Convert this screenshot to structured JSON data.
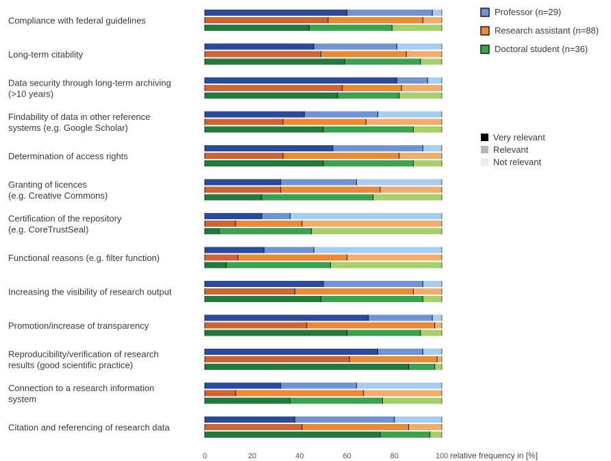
{
  "chart_data": {
    "type": "bar",
    "orientation": "horizontal",
    "stacked": true,
    "xlabel": "relative frequency in [%]",
    "xlim": [
      0,
      100
    ],
    "xticks": [
      "0",
      "20",
      "40",
      "60",
      "80",
      "100"
    ],
    "grid": false,
    "groups": [
      {
        "name": "Professor (n=29)",
        "colors": {
          "Very relevant": "#2b4a99",
          "Relevant": "#6f93d3",
          "Not relevant": "#a9cdee"
        }
      },
      {
        "name": "Research assistant (n=88)",
        "colors": {
          "Very relevant": "#cf6536",
          "Relevant": "#ec8935",
          "Not relevant": "#f3ad6b"
        }
      },
      {
        "name": "Doctoral student (n=36)",
        "colors": {
          "Very relevant": "#237a3c",
          "Relevant": "#3ba34f",
          "Not relevant": "#a7d06b"
        }
      }
    ],
    "stack_segments": [
      "Very relevant",
      "Relevant",
      "Not relevant"
    ],
    "categories": [
      "Compliance with federal guidelines",
      "Long-term citability",
      "Data security through long-term archiving (>10 years)",
      "Findability of data in other reference systems (e.g. Google Scholar)",
      "Determination of access rights",
      "Granting of licences (e.g. Creative Commons)",
      "Certification of the repository (e.g. CoreTrustSeal)",
      "Functional reasons (e.g. filter function)",
      "Increasing the visibility of research output",
      "Promotion/increase of transparency",
      "Reproducibility/verification of research results (good scientific practice)",
      "Connection to a research information system",
      "Citation and referencing of research data"
    ],
    "category_lines": [
      [
        "Compliance with federal guidelines"
      ],
      [
        "Long-term citability"
      ],
      [
        "Data security through long-term archiving",
        "(>10 years)"
      ],
      [
        "Findability of data in other reference",
        "systems (e.g. Google Scholar)"
      ],
      [
        "Determination of access rights"
      ],
      [
        "Granting of licences",
        "(e.g. Creative Commons)"
      ],
      [
        "Certification of the repository",
        "(e.g. CoreTrustSeal)"
      ],
      [
        "Functional reasons (e.g. filter function)"
      ],
      [
        "Increasing the visibility of research output"
      ],
      [
        "Promotion/increase of transparency"
      ],
      [
        "Reproducibility/verification of research",
        "results (good scientific practice)"
      ],
      [
        "Connection to a research information",
        "system"
      ],
      [
        "Citation and referencing of research data"
      ]
    ],
    "series": [
      {
        "name": "Professor (n=29)",
        "values": [
          [
            60,
            36,
            4
          ],
          [
            46,
            35,
            19
          ],
          [
            81,
            13,
            6
          ],
          [
            42,
            31,
            27
          ],
          [
            54,
            38,
            8
          ],
          [
            32,
            32,
            36
          ],
          [
            24,
            12,
            64
          ],
          [
            25,
            21,
            54
          ],
          [
            50,
            42,
            8
          ],
          [
            69,
            27,
            4
          ],
          [
            73,
            19,
            8
          ],
          [
            32,
            32,
            36
          ],
          [
            38,
            42,
            20
          ]
        ]
      },
      {
        "name": "Research assistant (n=88)",
        "values": [
          [
            52,
            40,
            8
          ],
          [
            49,
            36,
            15
          ],
          [
            58,
            25,
            17
          ],
          [
            33,
            35,
            32
          ],
          [
            33,
            49,
            18
          ],
          [
            32,
            42,
            26
          ],
          [
            13,
            28,
            59
          ],
          [
            14,
            46,
            40
          ],
          [
            38,
            50,
            12
          ],
          [
            43,
            54,
            3
          ],
          [
            61,
            37,
            2
          ],
          [
            13,
            54,
            33
          ],
          [
            41,
            45,
            14
          ]
        ]
      },
      {
        "name": "Doctoral student (n=36)",
        "values": [
          [
            44,
            35,
            21
          ],
          [
            59,
            32,
            9
          ],
          [
            56,
            26,
            18
          ],
          [
            50,
            38,
            12
          ],
          [
            50,
            38,
            12
          ],
          [
            24,
            47,
            29
          ],
          [
            6,
            39,
            55
          ],
          [
            9,
            44,
            47
          ],
          [
            49,
            43,
            8
          ],
          [
            60,
            31,
            9
          ],
          [
            86,
            11,
            3
          ],
          [
            36,
            39,
            25
          ],
          [
            74,
            21,
            5
          ]
        ]
      }
    ],
    "legend_groups": [
      "Professor (n=29)",
      "Research assistant (n=88)",
      "Doctoral student (n=36)"
    ],
    "legend_levels": [
      {
        "name": "Very relevant",
        "color": "#000000"
      },
      {
        "name": "Relevant",
        "color": "#b8b8b8"
      },
      {
        "name": "Not relevant",
        "color": "#ececec"
      }
    ],
    "legend_position": "right"
  }
}
